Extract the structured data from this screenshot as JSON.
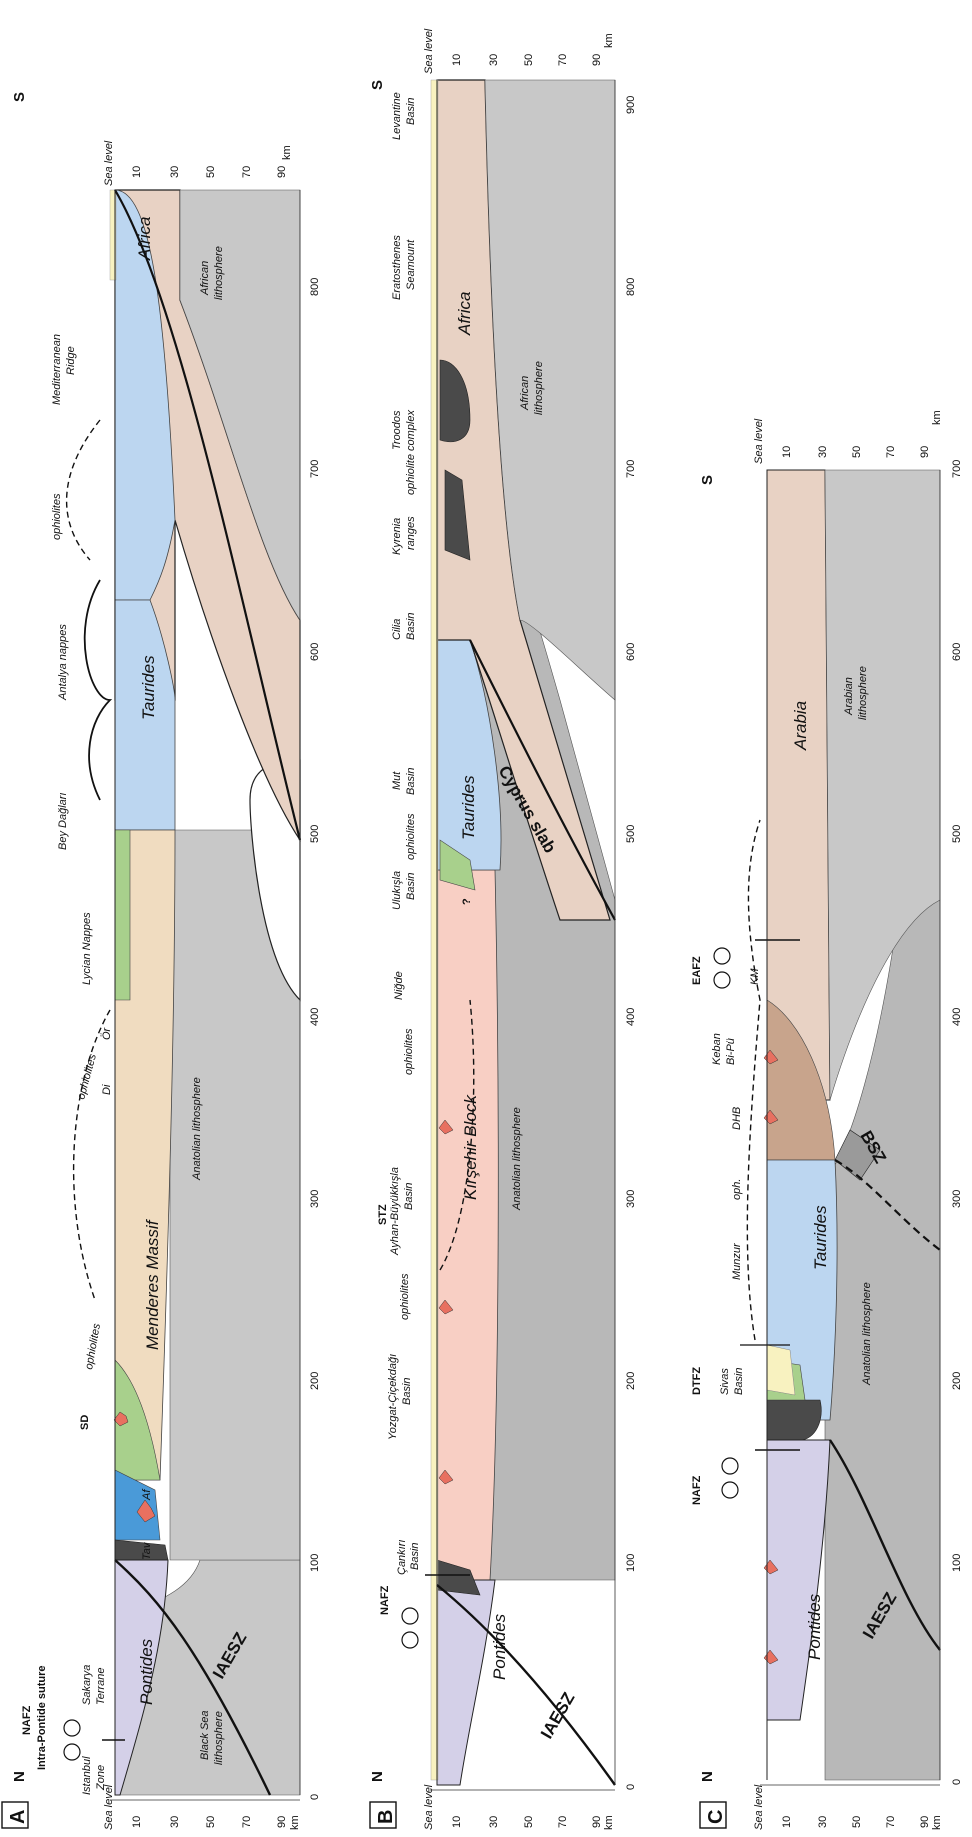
{
  "panels": [
    {
      "letter": "A",
      "north": "N",
      "south": "S",
      "sea_level": "Sea level",
      "depth_unit": "km",
      "dist_unit": "km",
      "depth_ticks": [
        "10",
        "30",
        "50",
        "70",
        "90"
      ],
      "dist_ticks": [
        "0",
        "100",
        "200",
        "300",
        "400",
        "500",
        "600",
        "700",
        "800"
      ],
      "labels": {
        "nafz": "NAFZ",
        "intra_pontide": "Intra-Pontide suture",
        "istanbul": "Istanbul",
        "zone": "Zone",
        "sakarya": "Sakarya",
        "terrane": "Terrane",
        "pontides": "Pontides",
        "black_sea": "Black Sea",
        "lithosphere_bs": "lithosphere",
        "iaesz": "IAESZ",
        "tav": "Tav",
        "af": "Af",
        "sd": "SD",
        "ophiolites1": "ophiolites",
        "menderes": "Menderes Massif",
        "anatolian": "Anatolian lithosphere",
        "di": "Di",
        "or": "Ör",
        "ophiolites2": "ophiolites",
        "lycian": "Lycian Nappes",
        "bey": "Bey Dağları",
        "taurides": "Taurides",
        "antalya": "Antalya nappes",
        "ophiolites3": "ophiolites",
        "mediterranean": "Mediterranean",
        "ridge": "Ridge",
        "africa": "Africa",
        "african": "African",
        "lithosphere_af": "lithosphere"
      }
    },
    {
      "letter": "B",
      "north": "N",
      "south": "S",
      "sea_level": "Sea level",
      "depth_unit": "km",
      "dist_unit": "km",
      "depth_ticks": [
        "10",
        "30",
        "50",
        "70",
        "90"
      ],
      "dist_ticks": [
        "0",
        "100",
        "200",
        "300",
        "400",
        "500",
        "600",
        "700",
        "800",
        "900"
      ],
      "labels": {
        "nafz": "NAFZ",
        "pontides": "Pontides",
        "iaesz": "IAESZ",
        "cankiri": "Çankırı",
        "basin1": "Basin",
        "yozgat": "Yozgat-Çiçekdağı",
        "basin2": "Basin",
        "ophiolites1": "ophiolites",
        "stz": "STZ",
        "ayhan": "Ayhan-Büyükkışla",
        "basin3": "Basin",
        "kirsehir": "Kırşehir Block",
        "anatolian": "Anatolian lithosphere",
        "ophiolites2": "ophiolites",
        "nigde": "Niğde",
        "ulukisla": "Ulukışla",
        "basin4": "Basin",
        "ophiolites3": "ophiolites",
        "mut": "Mut",
        "basin5": "Basin",
        "taurides": "Taurides",
        "cyprus": "Cyprus slab",
        "cilia": "Cilia",
        "basin6": "Basin",
        "kyrenia": "Kyrenia",
        "ranges": "ranges",
        "troodos": "Troodos",
        "ophiolite_complex": "ophiolite complex",
        "africa": "Africa",
        "african": "African",
        "lithosphere_af": "lithosphere",
        "eratosthenes": "Eratosthenes",
        "seamount": "Seamount",
        "levantine": "Levantine",
        "basin7": "Basin",
        "question": "?"
      }
    },
    {
      "letter": "C",
      "north": "N",
      "south": "S",
      "sea_level": "Sea level",
      "depth_unit": "km",
      "dist_unit": "km",
      "depth_ticks": [
        "10",
        "30",
        "50",
        "70",
        "90"
      ],
      "dist_ticks": [
        "0",
        "100",
        "200",
        "300",
        "400",
        "500",
        "600",
        "700"
      ],
      "labels": {
        "nafz": "NAFZ",
        "pontides": "Pontides",
        "iaesz": "IAESZ",
        "dtfz": "DTFZ",
        "sivas": "Sivas",
        "basin": "Basin",
        "munzur": "Munzur",
        "oph": "oph.",
        "taurides": "Taurides",
        "anatolian": "Anatolian lithosphere",
        "bsz": "BSZ",
        "dhb": "DHB",
        "keban": "Keban",
        "bipu": "Bi-Pü",
        "eafz": "EAFZ",
        "km": "KM",
        "arabia": "Arabia",
        "arabian": "Arabian",
        "lithosphere_ar": "lithosphere"
      }
    }
  ],
  "colors": {
    "pontides": "#d4d0e8",
    "taurides": "#bcd6f0",
    "africa": "#e8d2c4",
    "lithosphere": "#c8c8c8",
    "menderes": "#f0dcc0",
    "kirsehir": "#f8cfc4",
    "ophiolite": "#4a4a4a",
    "green_unit": "#a8d08c",
    "sediment": "#f8f2c0",
    "granite": "#e87060",
    "tav_blue": "#4a9ad8",
    "arabia": "#e8d2c4",
    "dhb_brown": "#c8a48c"
  }
}
